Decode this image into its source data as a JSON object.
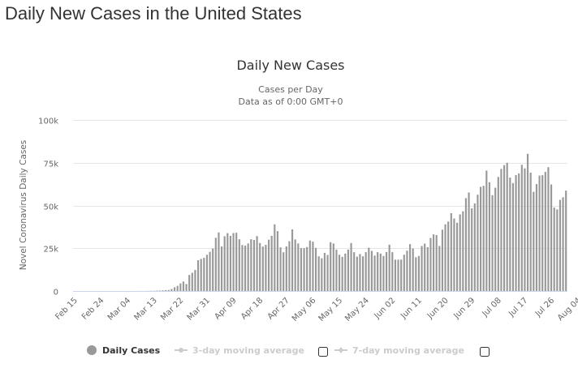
{
  "page": {
    "title": "Daily New Cases in the United States"
  },
  "chart_data": {
    "type": "bar",
    "title": "Daily New Cases",
    "subtitle_lines": [
      "Cases per Day",
      "Data as of 0:00 GMT+0"
    ],
    "xlabel": "",
    "ylabel": "Novel Coronavirus Daily Cases",
    "ylim": [
      0,
      100000
    ],
    "yticks": [
      0,
      25000,
      50000,
      75000,
      100000
    ],
    "ytick_labels": [
      "0",
      "25k",
      "50k",
      "75k",
      "100k"
    ],
    "xtick_labels": [
      "Feb 15",
      "Feb 24",
      "Mar 04",
      "Mar 13",
      "Mar 22",
      "Mar 31",
      "Apr 09",
      "Apr 18",
      "Apr 27",
      "May 06",
      "May 15",
      "May 24",
      "Jun 02",
      "Jun 11",
      "Jun 20",
      "Jun 29",
      "Jul 08",
      "Jul 17",
      "Jul 26",
      "Aug 04"
    ],
    "xtick_step_days": 9,
    "start_date": "Feb 15",
    "grid": true,
    "bar_color": "#999999",
    "series": [
      {
        "name": "Daily Cases",
        "values": [
          0,
          0,
          0,
          0,
          0,
          0,
          0,
          0,
          0,
          0,
          0,
          0,
          0,
          0,
          0,
          0,
          3,
          1,
          5,
          6,
          10,
          17,
          18,
          28,
          40,
          76,
          75,
          112,
          197,
          286,
          402,
          512,
          606,
          1169,
          2176,
          3003,
          4420,
          5551,
          4062,
          9393,
          10650,
          12300,
          17988,
          18760,
          19394,
          21186,
          22887,
          24839,
          31103,
          34239,
          26022,
          32009,
          33828,
          32218,
          33880,
          34048,
          30261,
          26874,
          26500,
          27819,
          30250,
          29847,
          32135,
          28083,
          25964,
          27004,
          30006,
          32240,
          38959,
          35000,
          25470,
          22650,
          26080,
          29120,
          36000,
          30170,
          27790,
          25050,
          25070,
          25670,
          29510,
          28840,
          25180,
          20290,
          19140,
          22330,
          21100,
          28540,
          27770,
          24190,
          21180,
          19960,
          21870,
          24220,
          28060,
          22680,
          20140,
          21620,
          20300,
          22720,
          25300,
          23450,
          20700,
          22720,
          21880,
          20490,
          22770,
          27100,
          22700,
          18300,
          18330,
          18370,
          21210,
          23600,
          27400,
          24860,
          19720,
          20500,
          26300,
          27700,
          25590,
          31000,
          33120,
          32690,
          26330,
          35880,
          39000,
          40600,
          45500,
          42400,
          39900,
          44800,
          46600,
          54300,
          57600,
          48300,
          51200,
          56300,
          60900,
          61500,
          70400,
          63600,
          56000,
          60400,
          66700,
          71400,
          73600,
          75000,
          66300,
          63100,
          67800,
          68700,
          73800,
          71700,
          80200,
          69200,
          58000,
          62500,
          67500,
          67700,
          69600,
          72400,
          62300,
          48800,
          47700,
          53300,
          54800,
          58700
        ]
      }
    ],
    "legend": [
      {
        "label": "Daily Cases",
        "active": true,
        "color": "#999999"
      },
      {
        "label": "3-day moving average",
        "active": false,
        "color": "#cccccc"
      },
      {
        "label": "7-day moving average",
        "active": false,
        "color": "#cccccc"
      }
    ]
  }
}
